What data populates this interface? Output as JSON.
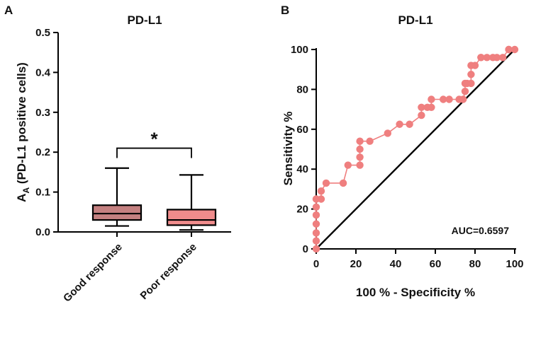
{
  "chart_data": [
    {
      "panel": "A",
      "type": "box",
      "title": "PD-L1",
      "ylabel": "A_A (PD-L1 positive cells)",
      "ylabel_main": "A",
      "ylabel_sub": "A",
      "ylabel_rest": "(PD-L1 positive cells)",
      "ylim": [
        0,
        0.5
      ],
      "yticks": [
        0,
        0.1,
        0.2,
        0.3,
        0.4,
        0.5
      ],
      "ytick_labels": [
        "0.0",
        "0.1",
        "0.2",
        "0.3",
        "0.4",
        "0.5"
      ],
      "grid": false,
      "categories": [
        "Good response",
        "Poor response"
      ],
      "boxes": [
        {
          "category": "Good response",
          "min": 0.015,
          "q1": 0.03,
          "median": 0.046,
          "q3": 0.067,
          "max": 0.16,
          "color": "#c48080"
        },
        {
          "category": "Poor response",
          "min": 0.005,
          "q1": 0.017,
          "median": 0.03,
          "q3": 0.056,
          "max": 0.143,
          "color": "#f08c8c"
        }
      ],
      "significance": {
        "label": "*",
        "between": [
          "Good response",
          "Poor response"
        ],
        "y": 0.21
      }
    },
    {
      "panel": "B",
      "type": "line",
      "title": "PD-L1",
      "xlabel": "100 % - Specificity %",
      "ylabel": "Sensitivity %",
      "xlim": [
        0,
        100
      ],
      "ylim": [
        0,
        100
      ],
      "xticks": [
        0,
        20,
        40,
        60,
        80,
        100
      ],
      "yticks": [
        0,
        20,
        40,
        60,
        80,
        100
      ],
      "grid": false,
      "annotation": "AUC=0.6597",
      "reference_line": {
        "from": [
          0,
          0
        ],
        "to": [
          100,
          100
        ]
      },
      "series": [
        {
          "color": "#ef7f7f",
          "x": [
            0,
            0,
            0,
            0,
            0,
            0,
            0,
            0,
            2.5,
            2.5,
            5,
            13.6,
            16,
            22,
            22,
            22,
            22,
            27,
            36,
            42,
            47,
            53,
            53,
            56,
            58,
            58,
            64,
            67,
            72,
            74,
            75,
            75,
            76,
            78,
            78,
            78,
            80,
            83,
            83,
            86,
            89,
            91,
            94,
            97,
            97,
            100
          ],
          "y": [
            0,
            4,
            8,
            12.5,
            17,
            21,
            25,
            25,
            25,
            29,
            33,
            33,
            42,
            42,
            46,
            50,
            54,
            54,
            58,
            62.5,
            62.5,
            67,
            71,
            71,
            71,
            75,
            75,
            75,
            75,
            75,
            79,
            83,
            83,
            83,
            87.5,
            92,
            92,
            96,
            96,
            96,
            96,
            96,
            96,
            100,
            100,
            100
          ]
        }
      ]
    }
  ]
}
